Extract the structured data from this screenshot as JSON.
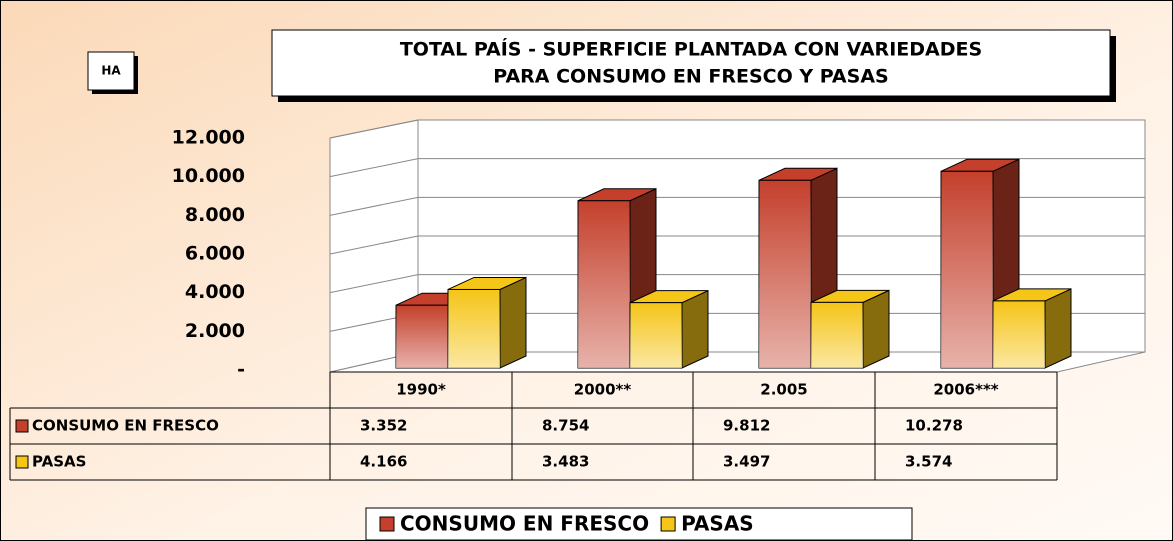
{
  "chart_data": {
    "type": "bar3d",
    "title": [
      "TOTAL PAÍS - SUPERFICIE PLANTADA CON VARIEDADES",
      "PARA CONSUMO EN FRESCO Y PASAS"
    ],
    "ylabel": "HA",
    "categories": [
      "1990*",
      "2000**",
      "2.005",
      "2006***"
    ],
    "series": [
      {
        "name": "CONSUMO EN FRESCO",
        "color": "#c4402c",
        "values": [
          3352,
          8754,
          9812,
          10278
        ],
        "value_labels": [
          "3.352",
          "8.754",
          "9.812",
          "10.278"
        ]
      },
      {
        "name": "PASAS",
        "color": "#f5c518",
        "values": [
          4166,
          3483,
          3497,
          3574
        ],
        "value_labels": [
          "4.166",
          "3.483",
          "3.497",
          "3.574"
        ]
      }
    ],
    "ylim": [
      0,
      12000
    ],
    "yticks": [
      {
        "value": 0,
        "label": "-"
      },
      {
        "value": 2000,
        "label": "2.000"
      },
      {
        "value": 4000,
        "label": "4.000"
      },
      {
        "value": 6000,
        "label": "6.000"
      },
      {
        "value": 8000,
        "label": "8.000"
      },
      {
        "value": 10000,
        "label": "10.000"
      },
      {
        "value": 12000,
        "label": "12.000"
      }
    ],
    "grid": true
  }
}
